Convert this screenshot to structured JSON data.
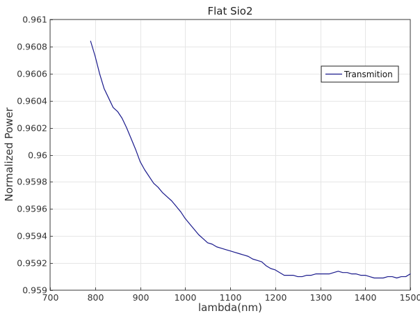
{
  "chart_data": {
    "type": "line",
    "title": "Flat Sio2",
    "xlabel": "lambda(nm)",
    "ylabel": "Normalized Power",
    "xlim": [
      700,
      1500
    ],
    "ylim": [
      0.959,
      0.961
    ],
    "grid": true,
    "legend_position": "top-right",
    "x_ticks": [
      {
        "value": 700,
        "label": "700"
      },
      {
        "value": 800,
        "label": "800"
      },
      {
        "value": 900,
        "label": "900"
      },
      {
        "value": 1000,
        "label": "1000"
      },
      {
        "value": 1100,
        "label": "1100"
      },
      {
        "value": 1200,
        "label": "1200"
      },
      {
        "value": 1300,
        "label": "1300"
      },
      {
        "value": 1400,
        "label": "1400"
      },
      {
        "value": 1500,
        "label": "1500"
      }
    ],
    "y_ticks": [
      {
        "value": 0.959,
        "label": "0.959"
      },
      {
        "value": 0.9592,
        "label": "0.9592"
      },
      {
        "value": 0.9594,
        "label": "0.9594"
      },
      {
        "value": 0.9596,
        "label": "0.9596"
      },
      {
        "value": 0.9598,
        "label": "0.9598"
      },
      {
        "value": 0.96,
        "label": "0.96"
      },
      {
        "value": 0.9602,
        "label": "0.9602"
      },
      {
        "value": 0.9604,
        "label": "0.9604"
      },
      {
        "value": 0.9606,
        "label": "0.9606"
      },
      {
        "value": 0.9608,
        "label": "0.9608"
      },
      {
        "value": 0.961,
        "label": "0.961"
      }
    ],
    "series": [
      {
        "name": "Transmition",
        "color": "#1a1a8c",
        "x": [
          790,
          800,
          810,
          820,
          830,
          840,
          850,
          860,
          870,
          880,
          890,
          900,
          910,
          920,
          930,
          940,
          950,
          960,
          970,
          980,
          990,
          1000,
          1010,
          1020,
          1030,
          1040,
          1050,
          1060,
          1070,
          1080,
          1090,
          1100,
          1110,
          1120,
          1130,
          1140,
          1150,
          1160,
          1170,
          1180,
          1190,
          1200,
          1210,
          1220,
          1230,
          1240,
          1250,
          1260,
          1270,
          1280,
          1290,
          1300,
          1310,
          1320,
          1330,
          1340,
          1350,
          1360,
          1370,
          1380,
          1390,
          1400,
          1410,
          1420,
          1430,
          1440,
          1450,
          1460,
          1470,
          1480,
          1490,
          1500
        ],
        "y": [
          0.96084,
          0.96073,
          0.9606,
          0.96049,
          0.96042,
          0.96035,
          0.96032,
          0.96027,
          0.9602,
          0.96012,
          0.96004,
          0.95995,
          0.95989,
          0.95984,
          0.95979,
          0.95976,
          0.95972,
          0.95969,
          0.95966,
          0.95962,
          0.95958,
          0.95953,
          0.95949,
          0.95945,
          0.95941,
          0.95938,
          0.95935,
          0.95934,
          0.95932,
          0.95931,
          0.9593,
          0.95929,
          0.95928,
          0.95927,
          0.95926,
          0.95925,
          0.95923,
          0.95922,
          0.95921,
          0.95918,
          0.95916,
          0.95915,
          0.95913,
          0.95911,
          0.95911,
          0.95911,
          0.9591,
          0.9591,
          0.95911,
          0.95911,
          0.95912,
          0.95912,
          0.95912,
          0.95912,
          0.95913,
          0.95914,
          0.95913,
          0.95913,
          0.95912,
          0.95912,
          0.95911,
          0.95911,
          0.9591,
          0.95909,
          0.95909,
          0.95909,
          0.9591,
          0.9591,
          0.95909,
          0.9591,
          0.9591,
          0.95912
        ]
      }
    ]
  }
}
